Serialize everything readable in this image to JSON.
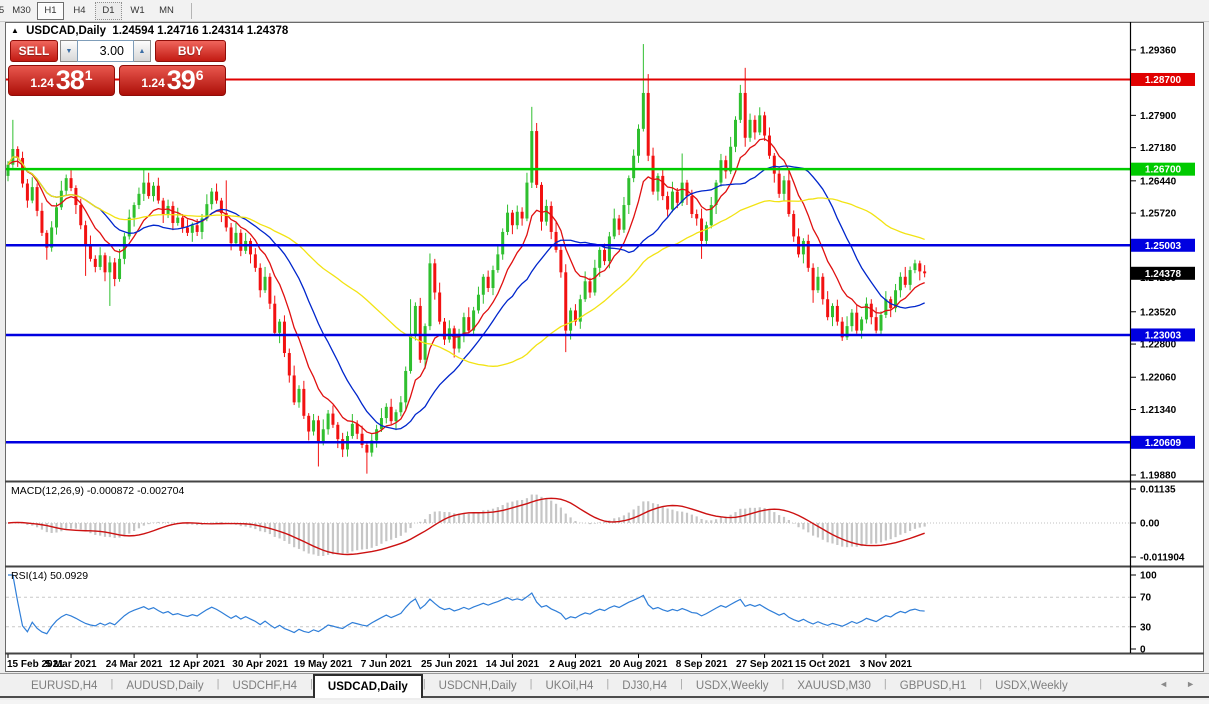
{
  "toolbar": {
    "timeframes": [
      "5",
      "M30",
      "H1",
      "H4",
      "D1",
      "W1",
      "MN"
    ],
    "active": "H1",
    "focused": "D1"
  },
  "chart": {
    "title_arrow": "▲",
    "symbol": "USDCAD,Daily",
    "ohlc": "1.24594 1.24716 1.24314 1.24378",
    "macd_label": "MACD(12,26,9) -0.000872 -0.002704",
    "rsi_label": "RSI(14) 50.0929",
    "trade_widget": {
      "sell_label": "SELL",
      "buy_label": "BUY",
      "volume": "3.00",
      "spin_down_icon": "▼",
      "spin_up_icon": "▲",
      "sell_price_small": "1.24",
      "sell_price_big": "38",
      "sell_price_sup": "1",
      "buy_price_small": "1.24",
      "buy_price_big": "39",
      "buy_price_sup": "6"
    }
  },
  "chart_data": {
    "type": "candlestick",
    "symbol": "USDCAD",
    "timeframe": "Daily",
    "open_first": 1.2655,
    "closes": [
      1.268,
      1.2715,
      1.2695,
      1.2638,
      1.26,
      1.263,
      1.2577,
      1.2528,
      1.2495,
      1.254,
      1.2585,
      1.2622,
      1.265,
      1.2628,
      1.259,
      1.2545,
      1.25,
      1.247,
      1.2452,
      1.2478,
      1.244,
      1.2462,
      1.2425,
      1.247,
      1.252,
      1.2562,
      1.259,
      1.2615,
      1.264,
      1.261,
      1.2633,
      1.26,
      1.257,
      1.2588,
      1.255,
      1.2562,
      1.254,
      1.2528,
      1.2545,
      1.253,
      1.256,
      1.2592,
      1.262,
      1.26,
      1.2572,
      1.254,
      1.2505,
      1.2528,
      1.2488,
      1.251,
      1.248,
      1.245,
      1.24,
      1.243,
      1.237,
      1.2305,
      1.233,
      1.226,
      1.221,
      1.215,
      1.218,
      1.212,
      1.2085,
      1.211,
      1.206,
      1.209,
      1.2125,
      1.21,
      1.2068,
      1.2045,
      1.2075,
      1.2102,
      1.208,
      1.2055,
      1.2038,
      1.2065,
      1.209,
      1.2115,
      1.214,
      1.2108,
      1.2128,
      1.215,
      1.222,
      1.23,
      1.2365,
      1.2245,
      1.232,
      1.246,
      1.2395,
      1.233,
      1.229,
      1.2315,
      1.227,
      1.23,
      1.234,
      1.231,
      1.2355,
      1.239,
      1.243,
      1.2405,
      1.2445,
      1.248,
      1.253,
      1.2573,
      1.2545,
      1.2575,
      1.256,
      1.264,
      1.2755,
      1.2635,
      1.2553,
      1.2588,
      1.253,
      1.249,
      1.244,
      1.231,
      1.2355,
      1.233,
      1.238,
      1.242,
      1.2395,
      1.245,
      1.249,
      1.2465,
      1.252,
      1.256,
      1.2535,
      1.259,
      1.265,
      1.27,
      1.276,
      1.284,
      1.27,
      1.262,
      1.2655,
      1.261,
      1.258,
      1.262,
      1.2595,
      1.264,
      1.261,
      1.257,
      1.256,
      1.251,
      1.2545,
      1.259,
      1.264,
      1.269,
      1.2665,
      1.272,
      1.278,
      1.284,
      1.274,
      1.278,
      1.2752,
      1.279,
      1.2745,
      1.27,
      1.266,
      1.2615,
      1.2645,
      1.257,
      1.252,
      1.248,
      1.251,
      1.245,
      1.24,
      1.243,
      1.238,
      1.234,
      1.2365,
      1.233,
      1.2295,
      1.232,
      1.235,
      1.231,
      1.2335,
      1.237,
      1.234,
      1.231,
      1.2345,
      1.238,
      1.236,
      1.24,
      1.243,
      1.2412,
      1.2445,
      1.246,
      1.2442,
      1.24378
    ],
    "wick_pattern_high": [
      0.0008,
      0.0018,
      0.0006,
      0.0014,
      0.001,
      0.0022
    ],
    "wick_pattern_low": [
      0.0012,
      0.0007,
      0.002,
      0.0009,
      0.0016,
      0.0006
    ],
    "wick_overrides": {
      "1": {
        "h": 1.278
      },
      "8": {
        "l": 1.2468
      },
      "16": {
        "l": 1.2432
      },
      "21": {
        "l": 1.2365
      },
      "28": {
        "h": 1.2668
      },
      "45": {
        "h": 1.2645
      },
      "56": {
        "l": 1.2282
      },
      "64": {
        "l": 1.2007
      },
      "69": {
        "l": 1.2028
      },
      "74": {
        "l": 1.1991
      },
      "83": {
        "h": 1.238
      },
      "87": {
        "h": 1.2482
      },
      "101": {
        "h": 1.25
      },
      "108": {
        "h": 1.2809
      },
      "115": {
        "l": 1.2262
      },
      "131": {
        "h": 1.2949
      },
      "132": {
        "h": 1.2882
      },
      "139": {
        "h": 1.2705
      },
      "143": {
        "l": 1.247
      },
      "152": {
        "h": 1.2896
      },
      "155": {
        "h": 1.2808
      },
      "166": {
        "l": 1.2372
      },
      "172": {
        "l": 1.2287
      },
      "176": {
        "l": 1.2292
      },
      "187": {
        "h": 1.2468
      }
    },
    "moving_averages": [
      {
        "name": "fast",
        "method": "ema",
        "period": 10,
        "color": "#e01010"
      },
      {
        "name": "medium",
        "method": "sma",
        "period": 20,
        "color": "#0026cc"
      },
      {
        "name": "slow",
        "method": "sma",
        "period": 50,
        "color": "#f2e313"
      }
    ],
    "h_lines": [
      {
        "price": 1.287,
        "color": "#e00000",
        "width": 2
      },
      {
        "price": 1.267,
        "color": "#00cc00",
        "width": 2.5
      },
      {
        "price": 1.25003,
        "color": "#0000e0",
        "width": 2.5
      },
      {
        "price": 1.23003,
        "color": "#0000e0",
        "width": 2.5
      },
      {
        "price": 1.20609,
        "color": "#0000e0",
        "width": 2.5
      }
    ],
    "price_tags": [
      {
        "price": 1.287,
        "bg": "#e00000",
        "fg": "#ffffff"
      },
      {
        "price": 1.267,
        "bg": "#00ca00",
        "fg": "#ffffff"
      },
      {
        "price": 1.25003,
        "bg": "#0000e0",
        "fg": "#ffffff"
      },
      {
        "price": 1.23003,
        "bg": "#0000e0",
        "fg": "#ffffff"
      },
      {
        "price": 1.20609,
        "bg": "#0000e0",
        "fg": "#ffffff"
      },
      {
        "price": 1.24378,
        "bg": "#000000",
        "fg": "#ffffff"
      }
    ],
    "y_axis_ticks": [
      1.2936,
      1.2864,
      1.279,
      1.2718,
      1.2644,
      1.2572,
      1.2428,
      1.2352,
      1.228,
      1.2206,
      1.2134,
      1.1988
    ],
    "macd": {
      "fast": 12,
      "slow": 26,
      "signal": 9,
      "axis_labels": [
        "0.01135",
        "0.00",
        "-0.011904"
      ],
      "hist_color": "#c6c6c6",
      "signal_color": "#cc1111"
    },
    "rsi": {
      "period": 14,
      "axis_labels": [
        100,
        70,
        30,
        0
      ],
      "levels": [
        70,
        30
      ],
      "color": "#2f7ed8"
    },
    "x_ticks": [
      {
        "label": "15 Feb 2021",
        "day": 0
      },
      {
        "label": "5 Mar 2021",
        "day": 13
      },
      {
        "label": "24 Mar 2021",
        "day": 26
      },
      {
        "label": "12 Apr 2021",
        "day": 39
      },
      {
        "label": "30 Apr 2021",
        "day": 52
      },
      {
        "label": "19 May 2021",
        "day": 65
      },
      {
        "label": "7 Jun 2021",
        "day": 78
      },
      {
        "label": "25 Jun 2021",
        "day": 91
      },
      {
        "label": "14 Jul 2021",
        "day": 104
      },
      {
        "label": "2 Aug 2021",
        "day": 117
      },
      {
        "label": "20 Aug 2021",
        "day": 130
      },
      {
        "label": "8 Sep 2021",
        "day": 143
      },
      {
        "label": "27 Sep 2021",
        "day": 156
      },
      {
        "label": "15 Oct 2021",
        "day": 168
      },
      {
        "label": "3 Nov 2021",
        "day": 181
      }
    ],
    "colors": {
      "up": "#2fbf2f",
      "down": "#f21111",
      "background": "#ffffff",
      "border": "#000000"
    }
  },
  "tabs": {
    "items": [
      "EURUSD,H4",
      "AUDUSD,Daily",
      "USDCHF,H4",
      "USDCAD,Daily",
      "USDCNH,Daily",
      "UKOil,H4",
      "DJ30,H4",
      "USDX,Weekly",
      "XAUUSD,M30",
      "GBPUSD,H1",
      "USDX,Weekly"
    ],
    "selected_index": 3,
    "scroll_left_icon": "◄",
    "scroll_right_icon": "►"
  }
}
